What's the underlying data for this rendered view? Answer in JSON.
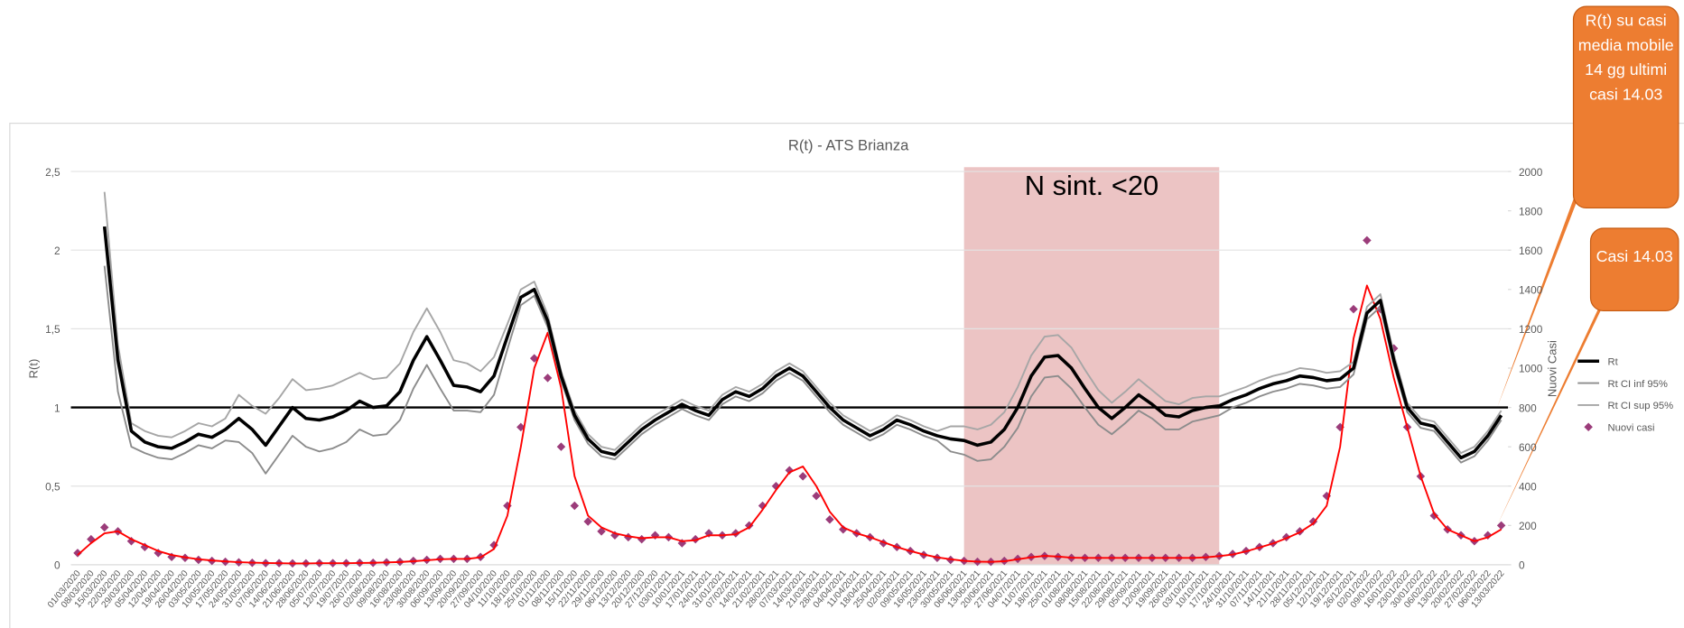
{
  "chart_data": {
    "type": "line",
    "title": "R(t) - ATS Brianza",
    "y_label": "R(t)",
    "y2_label": "Nuovi Casi",
    "categories": [
      "01/03/2020",
      "08/03/2020",
      "15/03/2020",
      "22/03/2020",
      "29/03/2020",
      "05/04/2020",
      "12/04/2020",
      "19/04/2020",
      "26/04/2020",
      "03/05/2020",
      "10/05/2020",
      "17/05/2020",
      "24/05/2020",
      "31/05/2020",
      "07/06/2020",
      "14/06/2020",
      "21/06/2020",
      "28/06/2020",
      "05/07/2020",
      "12/07/2020",
      "19/07/2020",
      "26/07/2020",
      "02/08/2020",
      "09/08/2020",
      "16/08/2020",
      "23/08/2020",
      "30/08/2020",
      "06/09/2020",
      "13/09/2020",
      "20/09/2020",
      "27/09/2020",
      "04/10/2020",
      "11/10/2020",
      "18/10/2020",
      "25/10/2020",
      "01/11/2020",
      "08/11/2020",
      "15/11/2020",
      "22/11/2020",
      "29/11/2020",
      "06/12/2020",
      "13/12/2020",
      "20/12/2020",
      "27/12/2020",
      "03/01/2021",
      "10/01/2021",
      "17/01/2021",
      "24/01/2021",
      "31/01/2021",
      "07/02/2021",
      "14/02/2021",
      "21/02/2021",
      "28/02/2021",
      "07/03/2021",
      "14/03/2021",
      "21/03/2021",
      "28/03/2021",
      "04/04/2021",
      "11/04/2021",
      "18/04/2021",
      "25/04/2021",
      "02/05/2021",
      "09/05/2021",
      "16/05/2021",
      "23/05/2021",
      "30/05/2021",
      "06/06/2021",
      "13/06/2021",
      "20/06/2021",
      "27/06/2021",
      "04/07/2021",
      "11/07/2021",
      "18/07/2021",
      "25/07/2021",
      "01/08/2021",
      "08/08/2021",
      "15/08/2021",
      "22/08/2021",
      "29/08/2021",
      "05/09/2021",
      "12/09/2021",
      "19/09/2021",
      "26/09/2021",
      "03/10/2021",
      "10/10/2021",
      "17/10/2021",
      "24/10/2021",
      "31/10/2021",
      "07/11/2021",
      "14/11/2021",
      "21/11/2021",
      "28/11/2021",
      "05/12/2021",
      "12/12/2021",
      "19/12/2021",
      "26/12/2021",
      "02/01/2022",
      "09/01/2022",
      "16/01/2022",
      "23/01/2022",
      "30/01/2022",
      "06/02/2022",
      "13/02/2022",
      "20/02/2022",
      "27/02/2022",
      "06/03/2022",
      "13/03/2022"
    ],
    "series": [
      {
        "name": "Rt",
        "type": "line",
        "color": "#000000",
        "width": 3,
        "values": [
          null,
          null,
          2.15,
          1.3,
          0.85,
          0.78,
          0.75,
          0.74,
          0.78,
          0.83,
          0.81,
          0.86,
          0.93,
          0.86,
          0.76,
          0.88,
          1.0,
          0.93,
          0.92,
          0.94,
          0.98,
          1.04,
          1.0,
          1.01,
          1.1,
          1.3,
          1.45,
          1.3,
          1.14,
          1.13,
          1.1,
          1.2,
          1.45,
          1.7,
          1.75,
          1.55,
          1.2,
          0.95,
          0.8,
          0.72,
          0.7,
          0.78,
          0.86,
          0.92,
          0.97,
          1.02,
          0.98,
          0.95,
          1.05,
          1.1,
          1.07,
          1.12,
          1.2,
          1.25,
          1.2,
          1.1,
          1.0,
          0.92,
          0.87,
          0.82,
          0.86,
          0.92,
          0.89,
          0.85,
          0.82,
          0.8,
          0.79,
          0.76,
          0.78,
          0.86,
          1.0,
          1.2,
          1.32,
          1.33,
          1.25,
          1.12,
          1.0,
          0.93,
          1.0,
          1.08,
          1.02,
          0.95,
          0.94,
          0.98,
          1.0,
          1.01,
          1.05,
          1.08,
          1.12,
          1.15,
          1.17,
          1.2,
          1.19,
          1.17,
          1.18,
          1.25,
          1.6,
          1.68,
          1.3,
          1.0,
          0.9,
          0.88,
          0.78,
          0.68,
          0.72,
          0.82,
          0.95
        ]
      },
      {
        "name": "Rt CI inf 95%",
        "type": "line",
        "color": "#8c8c8c",
        "width": 1.6,
        "values": [
          null,
          null,
          1.9,
          1.1,
          0.75,
          0.71,
          0.68,
          0.67,
          0.71,
          0.76,
          0.74,
          0.79,
          0.78,
          0.71,
          0.58,
          0.7,
          0.82,
          0.75,
          0.72,
          0.74,
          0.78,
          0.86,
          0.82,
          0.83,
          0.92,
          1.12,
          1.27,
          1.12,
          0.98,
          0.98,
          0.97,
          1.08,
          1.37,
          1.65,
          1.71,
          1.51,
          1.17,
          0.92,
          0.77,
          0.69,
          0.67,
          0.75,
          0.83,
          0.89,
          0.94,
          0.99,
          0.95,
          0.92,
          1.02,
          1.07,
          1.04,
          1.09,
          1.17,
          1.22,
          1.17,
          1.07,
          0.97,
          0.89,
          0.84,
          0.79,
          0.83,
          0.89,
          0.86,
          0.82,
          0.79,
          0.72,
          0.7,
          0.66,
          0.67,
          0.75,
          0.87,
          1.07,
          1.19,
          1.2,
          1.12,
          1.0,
          0.89,
          0.83,
          0.9,
          0.98,
          0.93,
          0.86,
          0.86,
          0.91,
          0.93,
          0.95,
          1.0,
          1.03,
          1.07,
          1.1,
          1.12,
          1.15,
          1.14,
          1.12,
          1.13,
          1.21,
          1.56,
          1.64,
          1.27,
          0.97,
          0.87,
          0.85,
          0.75,
          0.65,
          0.69,
          0.79,
          0.92
        ]
      },
      {
        "name": "Rt CI sup 95%",
        "type": "line",
        "color": "#a6a6a6",
        "width": 1.6,
        "values": [
          null,
          null,
          2.37,
          1.4,
          0.9,
          0.85,
          0.82,
          0.81,
          0.85,
          0.9,
          0.88,
          0.93,
          1.08,
          1.01,
          0.96,
          1.06,
          1.18,
          1.11,
          1.12,
          1.14,
          1.18,
          1.22,
          1.18,
          1.19,
          1.28,
          1.48,
          1.63,
          1.48,
          1.3,
          1.28,
          1.23,
          1.32,
          1.53,
          1.75,
          1.8,
          1.59,
          1.23,
          0.98,
          0.83,
          0.75,
          0.73,
          0.81,
          0.89,
          0.95,
          1.0,
          1.05,
          1.01,
          0.98,
          1.08,
          1.13,
          1.1,
          1.15,
          1.23,
          1.28,
          1.23,
          1.13,
          1.03,
          0.95,
          0.9,
          0.85,
          0.89,
          0.95,
          0.92,
          0.88,
          0.85,
          0.88,
          0.88,
          0.86,
          0.89,
          0.97,
          1.13,
          1.33,
          1.45,
          1.46,
          1.38,
          1.24,
          1.11,
          1.03,
          1.1,
          1.18,
          1.11,
          1.04,
          1.02,
          1.06,
          1.07,
          1.07,
          1.1,
          1.13,
          1.17,
          1.2,
          1.22,
          1.25,
          1.24,
          1.22,
          1.23,
          1.29,
          1.64,
          1.72,
          1.34,
          1.03,
          0.93,
          0.91,
          0.81,
          0.71,
          0.75,
          0.85,
          0.98
        ]
      },
      {
        "name": "Nuovi casi",
        "type": "scatter",
        "axis": "y2",
        "color": "#9b3c7a",
        "values": [
          60,
          130,
          190,
          170,
          120,
          90,
          60,
          40,
          35,
          25,
          20,
          15,
          12,
          10,
          8,
          8,
          7,
          7,
          8,
          8,
          8,
          10,
          10,
          12,
          15,
          20,
          25,
          30,
          30,
          30,
          40,
          100,
          300,
          700,
          1050,
          950,
          600,
          300,
          220,
          170,
          150,
          140,
          130,
          150,
          140,
          110,
          130,
          160,
          150,
          160,
          200,
          300,
          400,
          480,
          450,
          350,
          230,
          180,
          160,
          140,
          110,
          90,
          70,
          50,
          35,
          25,
          20,
          15,
          15,
          20,
          30,
          40,
          45,
          40,
          35,
          35,
          35,
          35,
          35,
          35,
          35,
          35,
          35,
          35,
          40,
          45,
          55,
          70,
          90,
          110,
          140,
          170,
          220,
          350,
          700,
          1300,
          1650,
          1300,
          1100,
          700,
          450,
          250,
          180,
          150,
          120,
          150,
          200
        ]
      },
      {
        "type": "line",
        "axis": "y2",
        "color": "#ff0000",
        "width": 1.6,
        "values": [
          50,
          110,
          160,
          170,
          130,
          100,
          70,
          50,
          38,
          28,
          22,
          17,
          13,
          11,
          9,
          8,
          7,
          7,
          8,
          8,
          8,
          9,
          10,
          12,
          14,
          18,
          23,
          28,
          30,
          30,
          38,
          80,
          250,
          600,
          1000,
          1180,
          900,
          450,
          250,
          190,
          160,
          145,
          135,
          140,
          140,
          120,
          125,
          150,
          150,
          155,
          190,
          280,
          380,
          470,
          500,
          400,
          270,
          190,
          160,
          140,
          115,
          90,
          70,
          52,
          38,
          28,
          20,
          16,
          15,
          18,
          28,
          38,
          45,
          42,
          36,
          35,
          35,
          35,
          35,
          35,
          35,
          35,
          35,
          35,
          38,
          44,
          52,
          68,
          88,
          108,
          135,
          165,
          210,
          300,
          600,
          1150,
          1420,
          1250,
          950,
          700,
          450,
          260,
          180,
          150,
          120,
          140,
          180
        ]
      }
    ],
    "ylim": [
      0,
      2.5
    ],
    "yticks": [
      0,
      {
        "value": 0.5,
        "label": "0,5"
      },
      1,
      {
        "value": 1.5,
        "label": "1,5"
      },
      2,
      {
        "value": 2.5,
        "label": "2,5"
      }
    ],
    "y2lim": [
      0,
      2000
    ],
    "y2ticks": [
      0,
      200,
      400,
      600,
      800,
      1000,
      1200,
      1400,
      1600,
      1800,
      2000
    ],
    "grid": true,
    "legend": "right",
    "reference_line": 1,
    "shaded_region": {
      "label": "N sint. <20",
      "from": "06/06/2021",
      "to": "17/10/2021",
      "color": "#e6b0b0"
    },
    "callouts": [
      "R(t) su casi media mobile 14 gg ultimi casi 14.03",
      "Casi 14.03"
    ]
  }
}
